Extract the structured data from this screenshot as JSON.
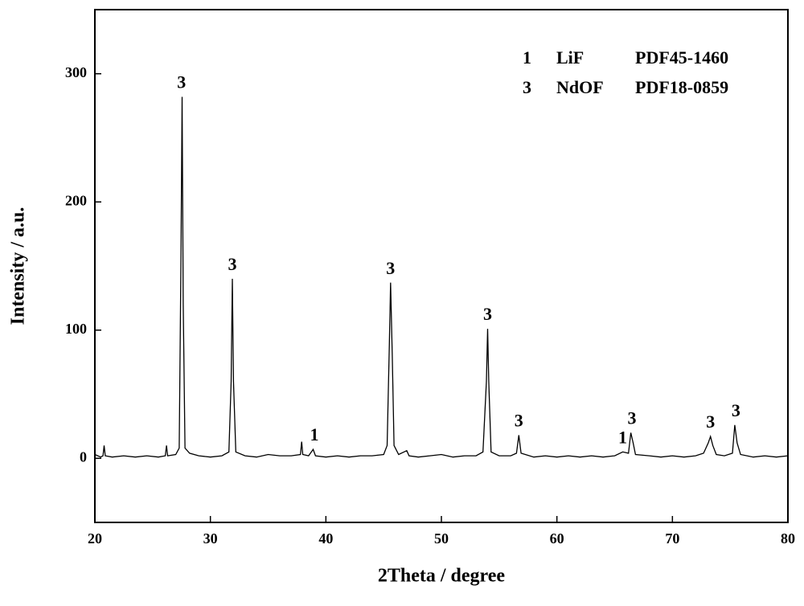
{
  "chart_data": {
    "type": "line",
    "x_label": "2Theta / degree",
    "y_label": "Intensity / a.u.",
    "xlim": [
      20,
      80
    ],
    "ylim": [
      -50,
      350
    ],
    "xticks": [
      20,
      30,
      40,
      50,
      60,
      70,
      80
    ],
    "yticks": [
      0,
      100,
      200,
      300
    ],
    "series": [
      {
        "color": "#000000",
        "x": [
          20.0,
          20.5,
          20.7,
          20.8,
          20.9,
          21.5,
          22.5,
          23.5,
          24.5,
          25.5,
          26.1,
          26.2,
          26.3,
          27.0,
          27.3,
          27.45,
          27.55,
          27.65,
          27.8,
          28.2,
          29,
          30,
          31,
          31.6,
          31.8,
          31.9,
          32.0,
          32.2,
          33,
          34,
          35,
          36,
          37,
          37.8,
          37.9,
          38.0,
          38.5,
          38.9,
          39.1,
          40,
          41,
          42,
          43,
          44,
          45,
          45.3,
          45.5,
          45.6,
          45.75,
          45.9,
          46.3,
          47.0,
          47.2,
          48,
          49,
          50,
          51,
          52,
          53,
          53.6,
          53.9,
          54.0,
          54.1,
          54.3,
          55,
          56,
          56.5,
          56.7,
          56.9,
          58,
          59,
          60,
          61,
          62,
          63,
          64,
          65,
          65.7,
          66.2,
          66.4,
          66.6,
          66.8,
          68,
          69,
          70,
          71,
          72,
          72.7,
          73.1,
          73.3,
          73.5,
          73.8,
          74.5,
          75.2,
          75.4,
          75.6,
          75.9,
          77,
          78,
          79,
          80
        ],
        "values": [
          3,
          1,
          2,
          10,
          2,
          1,
          2,
          1,
          2,
          1,
          2,
          10,
          2,
          3,
          8,
          150,
          282,
          120,
          8,
          4,
          2,
          1,
          2,
          5,
          60,
          140,
          60,
          5,
          2,
          1,
          3,
          2,
          2,
          3,
          13,
          3,
          2,
          7,
          2,
          1,
          2,
          1,
          2,
          2,
          3,
          10,
          90,
          137,
          80,
          10,
          3,
          6,
          2,
          1,
          2,
          3,
          1,
          2,
          2,
          5,
          60,
          101,
          60,
          5,
          2,
          2,
          4,
          18,
          4,
          1,
          2,
          1,
          2,
          1,
          2,
          1,
          2,
          5,
          4,
          20,
          12,
          3,
          2,
          1,
          2,
          1,
          2,
          4,
          12,
          17,
          10,
          3,
          2,
          4,
          26,
          12,
          3,
          1,
          2,
          1,
          2
        ]
      }
    ],
    "peak_labels": [
      {
        "label": "3",
        "x": 27.5
      },
      {
        "label": "3",
        "x": 31.9
      },
      {
        "label": "1",
        "x": 39.0
      },
      {
        "label": "3",
        "x": 45.6
      },
      {
        "label": "3",
        "x": 54.0
      },
      {
        "label": "3",
        "x": 56.7
      },
      {
        "label": "1",
        "x": 65.7
      },
      {
        "label": "3",
        "x": 66.5
      },
      {
        "label": "3",
        "x": 73.3
      },
      {
        "label": "3",
        "x": 75.5
      }
    ],
    "legend_text": [
      [
        "1",
        "LiF",
        "PDF45-1460"
      ],
      [
        "3",
        "NdOF",
        "PDF18-0859"
      ]
    ]
  }
}
